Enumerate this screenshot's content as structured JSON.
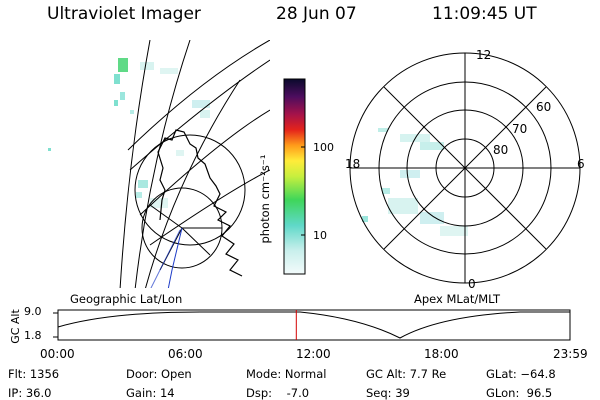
{
  "header": {
    "title": "Ultraviolet Imager",
    "date": "28 Jun 07",
    "time": "11:09:45 UT"
  },
  "colorbar": {
    "label": "photon cm⁻²s⁻¹",
    "ticks": [
      "100",
      "10"
    ]
  },
  "polar_plot": {
    "mlt_labels": {
      "top": "12",
      "left": "18",
      "right": "6",
      "bottom": "0"
    },
    "lat_labels": [
      "60",
      "70",
      "80"
    ],
    "caption": "Apex MLat/MLT"
  },
  "geo_plot": {
    "caption": "Geographic Lat/Lon"
  },
  "altitude_panel": {
    "axis_label": "GC Alt",
    "y_ticks": [
      "9.0",
      "1.8"
    ],
    "x_ticks": [
      "00:00",
      "06:00",
      "12:00",
      "18:00",
      "23:59"
    ],
    "cursor_time": "11:09:45",
    "cursor_color": "#d40000"
  },
  "info": {
    "flt": "Flt: 1356",
    "ip": "IP: 36.0",
    "door": "Door: Open",
    "gain": "Gain: 14",
    "mode": "Mode: Normal",
    "dsp": "Dsp:    -7.0",
    "gc_alt": "GC Alt: 7.7 Re",
    "seq": "Seq: 39",
    "glat": "GLat: −64.8",
    "glon": "GLon:  96.5"
  }
}
